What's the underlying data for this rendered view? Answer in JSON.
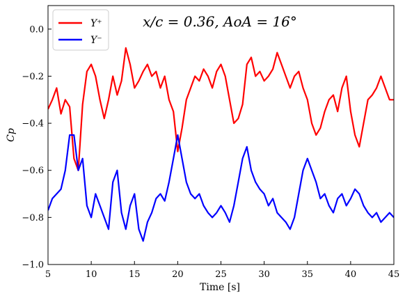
{
  "chart_data": {
    "type": "line",
    "title": "x/c = 0.36,  AoA = 16°",
    "xlabel": "Time [s]",
    "ylabel": "Cp",
    "xlim": [
      5,
      45
    ],
    "ylim": [
      -1.0,
      0.1
    ],
    "xticks": [
      5,
      10,
      15,
      20,
      25,
      30,
      35,
      40,
      45
    ],
    "yticks": [
      -1.0,
      -0.8,
      -0.6,
      -0.4,
      -0.2,
      0.0
    ],
    "xtick_labels": [
      "5",
      "10",
      "15",
      "20",
      "25",
      "30",
      "35",
      "40",
      "45"
    ],
    "ytick_labels": [
      "−1.0",
      "−0.8",
      "−0.6",
      "−0.4",
      "−0.2",
      "0.0"
    ],
    "grid": false,
    "legend_position": "top-left",
    "series": [
      {
        "name": "Y⁺",
        "color": "#ff0000",
        "x": [
          5,
          5.5,
          6,
          6.5,
          7,
          7.5,
          8,
          8.5,
          9,
          9.5,
          10,
          10.5,
          11,
          11.5,
          12,
          12.5,
          13,
          13.5,
          14,
          14.5,
          15,
          15.5,
          16,
          16.5,
          17,
          17.5,
          18,
          18.5,
          19,
          19.5,
          20,
          20.5,
          21,
          21.5,
          22,
          22.5,
          23,
          23.5,
          24,
          24.5,
          25,
          25.5,
          26,
          26.5,
          27,
          27.5,
          28,
          28.5,
          29,
          29.5,
          30,
          30.5,
          31,
          31.5,
          32,
          32.5,
          33,
          33.5,
          34,
          34.5,
          35,
          35.5,
          36,
          36.5,
          37,
          37.5,
          38,
          38.5,
          39,
          39.5,
          40,
          40.5,
          41,
          41.5,
          42,
          42.5,
          43,
          43.5,
          44,
          44.5,
          45
        ],
        "y": [
          -0.34,
          -0.3,
          -0.25,
          -0.36,
          -0.3,
          -0.33,
          -0.55,
          -0.6,
          -0.32,
          -0.18,
          -0.15,
          -0.2,
          -0.3,
          -0.38,
          -0.3,
          -0.2,
          -0.28,
          -0.22,
          -0.08,
          -0.15,
          -0.25,
          -0.22,
          -0.18,
          -0.15,
          -0.2,
          -0.18,
          -0.25,
          -0.2,
          -0.3,
          -0.35,
          -0.52,
          -0.42,
          -0.3,
          -0.25,
          -0.2,
          -0.22,
          -0.17,
          -0.2,
          -0.25,
          -0.18,
          -0.15,
          -0.2,
          -0.3,
          -0.4,
          -0.38,
          -0.32,
          -0.15,
          -0.12,
          -0.2,
          -0.18,
          -0.22,
          -0.2,
          -0.17,
          -0.1,
          -0.15,
          -0.2,
          -0.25,
          -0.2,
          -0.18,
          -0.25,
          -0.3,
          -0.4,
          -0.45,
          -0.42,
          -0.35,
          -0.3,
          -0.28,
          -0.35,
          -0.25,
          -0.2,
          -0.35,
          -0.45,
          -0.5,
          -0.4,
          -0.3,
          -0.28,
          -0.25,
          -0.2,
          -0.25,
          -0.3,
          -0.3
        ]
      },
      {
        "name": "Y⁻",
        "color": "#0000ff",
        "x": [
          5,
          5.5,
          6,
          6.5,
          7,
          7.5,
          8,
          8.5,
          9,
          9.5,
          10,
          10.5,
          11,
          11.5,
          12,
          12.5,
          13,
          13.5,
          14,
          14.5,
          15,
          15.5,
          16,
          16.5,
          17,
          17.5,
          18,
          18.5,
          19,
          19.5,
          20,
          20.5,
          21,
          21.5,
          22,
          22.5,
          23,
          23.5,
          24,
          24.5,
          25,
          25.5,
          26,
          26.5,
          27,
          27.5,
          28,
          28.5,
          29,
          29.5,
          30,
          30.5,
          31,
          31.5,
          32,
          32.5,
          33,
          33.5,
          34,
          34.5,
          35,
          35.5,
          36,
          36.5,
          37,
          37.5,
          38,
          38.5,
          39,
          39.5,
          40,
          40.5,
          41,
          41.5,
          42,
          42.5,
          43,
          43.5,
          44,
          44.5,
          45
        ],
        "y": [
          -0.77,
          -0.72,
          -0.7,
          -0.68,
          -0.6,
          -0.45,
          -0.45,
          -0.6,
          -0.55,
          -0.75,
          -0.8,
          -0.7,
          -0.75,
          -0.8,
          -0.85,
          -0.65,
          -0.6,
          -0.78,
          -0.85,
          -0.75,
          -0.7,
          -0.85,
          -0.9,
          -0.82,
          -0.78,
          -0.72,
          -0.7,
          -0.73,
          -0.65,
          -0.55,
          -0.45,
          -0.55,
          -0.65,
          -0.7,
          -0.72,
          -0.7,
          -0.75,
          -0.78,
          -0.8,
          -0.78,
          -0.75,
          -0.78,
          -0.82,
          -0.75,
          -0.65,
          -0.55,
          -0.5,
          -0.6,
          -0.65,
          -0.68,
          -0.7,
          -0.75,
          -0.72,
          -0.78,
          -0.8,
          -0.82,
          -0.85,
          -0.8,
          -0.7,
          -0.6,
          -0.55,
          -0.6,
          -0.65,
          -0.72,
          -0.7,
          -0.75,
          -0.78,
          -0.72,
          -0.7,
          -0.75,
          -0.72,
          -0.68,
          -0.7,
          -0.75,
          -0.78,
          -0.8,
          -0.78,
          -0.82,
          -0.8,
          -0.78,
          -0.8
        ]
      }
    ]
  }
}
